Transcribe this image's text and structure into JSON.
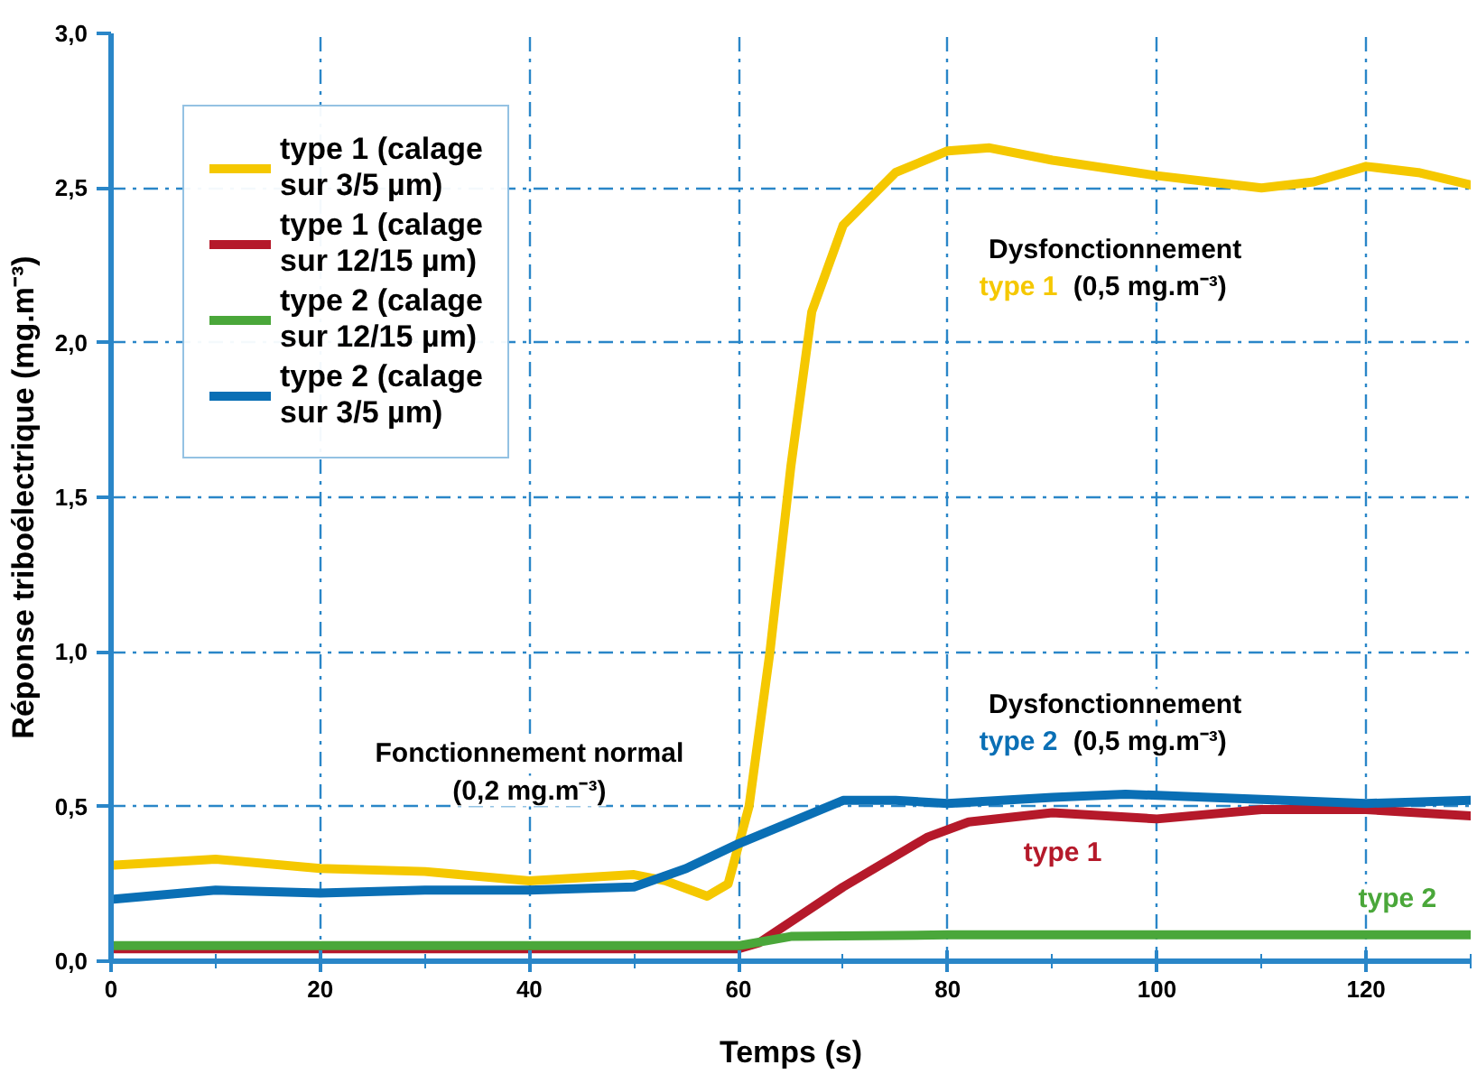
{
  "chart_data": {
    "type": "line",
    "xlabel": "Temps (s)",
    "ylabel": "Réponse triboélectrique (mg.m⁻³)",
    "xlim": [
      0,
      130
    ],
    "ylim": [
      0,
      3
    ],
    "xticks": [
      0,
      20,
      40,
      60,
      80,
      100,
      120
    ],
    "yticks": [
      {
        "value": 0,
        "label": "0,0"
      },
      {
        "value": 0.5,
        "label": "0,5"
      },
      {
        "value": 1,
        "label": "1,0"
      },
      {
        "value": 1.5,
        "label": "1,5"
      },
      {
        "value": 2,
        "label": "2,0"
      },
      {
        "value": 2.5,
        "label": "2,5"
      },
      {
        "value": 3,
        "label": "3,0"
      }
    ],
    "grid": true,
    "legend": "top left",
    "line_style": "solid",
    "series": [
      {
        "name": "type 1 (calage\nsur 3/5 µm)",
        "color": "#f5c800",
        "x": [
          0,
          10,
          20,
          30,
          40,
          50,
          53,
          57,
          59,
          61,
          63,
          65,
          67,
          70,
          75,
          80,
          84,
          90,
          100,
          110,
          115,
          120,
          125,
          130
        ],
        "values": [
          0.31,
          0.33,
          0.3,
          0.29,
          0.26,
          0.28,
          0.26,
          0.21,
          0.25,
          0.5,
          1.0,
          1.6,
          2.1,
          2.38,
          2.55,
          2.62,
          2.63,
          2.59,
          2.54,
          2.5,
          2.52,
          2.57,
          2.55,
          2.51
        ]
      },
      {
        "name": "type 1 (calage\nsur 12/15 µm)",
        "color": "#b5192a",
        "x": [
          0,
          60,
          62,
          70,
          78,
          82,
          90,
          100,
          110,
          120,
          130
        ],
        "values": [
          0.04,
          0.04,
          0.06,
          0.24,
          0.4,
          0.45,
          0.48,
          0.46,
          0.49,
          0.49,
          0.47
        ]
      },
      {
        "name": "type 2 (calage\nsur 12/15 µm)",
        "color": "#4aa73a",
        "x": [
          0,
          60,
          65,
          80,
          130
        ],
        "values": [
          0.05,
          0.05,
          0.08,
          0.085,
          0.085
        ]
      },
      {
        "name": "type 2 (calage\nsur 3/5 µm)",
        "color": "#0a6fb5",
        "x": [
          0,
          10,
          20,
          30,
          40,
          50,
          55,
          60,
          65,
          70,
          75,
          80,
          90,
          97,
          105,
          120,
          130
        ],
        "values": [
          0.2,
          0.23,
          0.22,
          0.23,
          0.23,
          0.24,
          0.3,
          0.38,
          0.45,
          0.52,
          0.52,
          0.51,
          0.53,
          0.54,
          0.53,
          0.51,
          0.52
        ]
      }
    ],
    "annotations": [
      "Dysfonctionnement",
      "type 1",
      "(0,5 mg.m⁻³)",
      "Dysfonctionnement",
      "type 2",
      "(0,5 mg.m⁻³)",
      "Fonctionnement normal",
      "(0,2 mg.m⁻³)",
      "type 1",
      "type 2"
    ]
  }
}
